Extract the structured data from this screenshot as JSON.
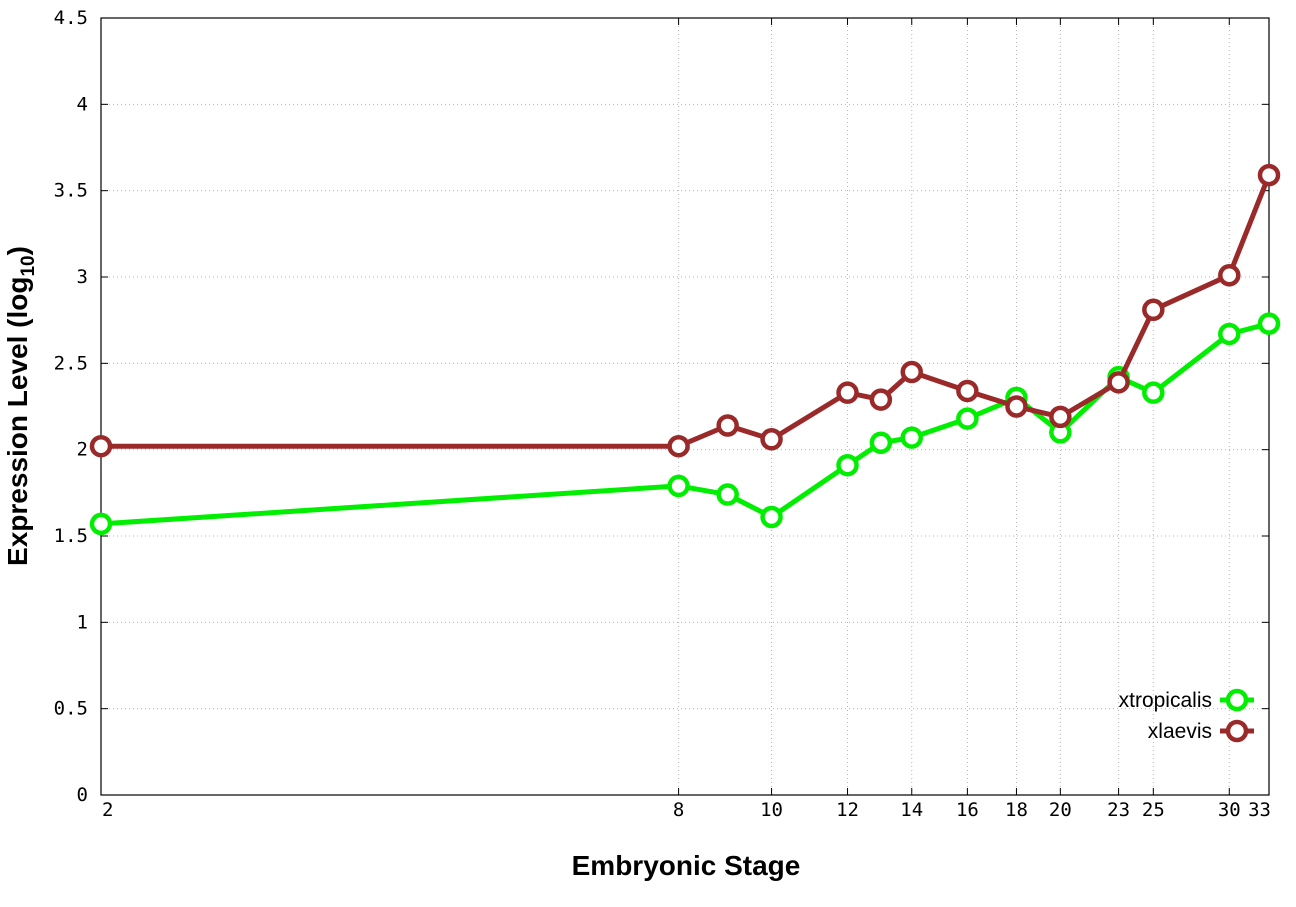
{
  "chart_data": {
    "type": "line",
    "title": "",
    "xlabel": "Embryonic Stage",
    "ylabel_main": "Expression Level (log",
    "ylabel_sub": "10",
    "ylabel_close": ")",
    "x_scale": "log",
    "xlim": [
      2,
      33
    ],
    "ylim": [
      0,
      4.5
    ],
    "x_ticks": [
      2,
      8,
      10,
      12,
      14,
      16,
      18,
      20,
      23,
      25,
      30,
      33
    ],
    "y_ticks": [
      "0",
      "0.5",
      "1",
      "1.5",
      "2",
      "2.5",
      "3",
      "3.5",
      "4",
      "4.5"
    ],
    "grid": true,
    "legend_position": "bottom-right",
    "x": [
      2,
      8,
      9,
      10,
      12,
      13,
      14,
      16,
      18,
      20,
      23,
      25,
      30,
      33
    ],
    "series": [
      {
        "name": "xtropicalis",
        "color": "#00ee00",
        "values": [
          1.57,
          1.79,
          1.74,
          1.61,
          1.91,
          2.04,
          2.07,
          2.18,
          2.3,
          2.1,
          2.42,
          2.33,
          2.67,
          2.73
        ]
      },
      {
        "name": "xlaevis",
        "color": "#9a2a2a",
        "values": [
          2.02,
          2.02,
          2.14,
          2.06,
          2.33,
          2.29,
          2.45,
          2.34,
          2.25,
          2.19,
          2.39,
          2.81,
          3.01,
          3.59
        ]
      }
    ]
  }
}
